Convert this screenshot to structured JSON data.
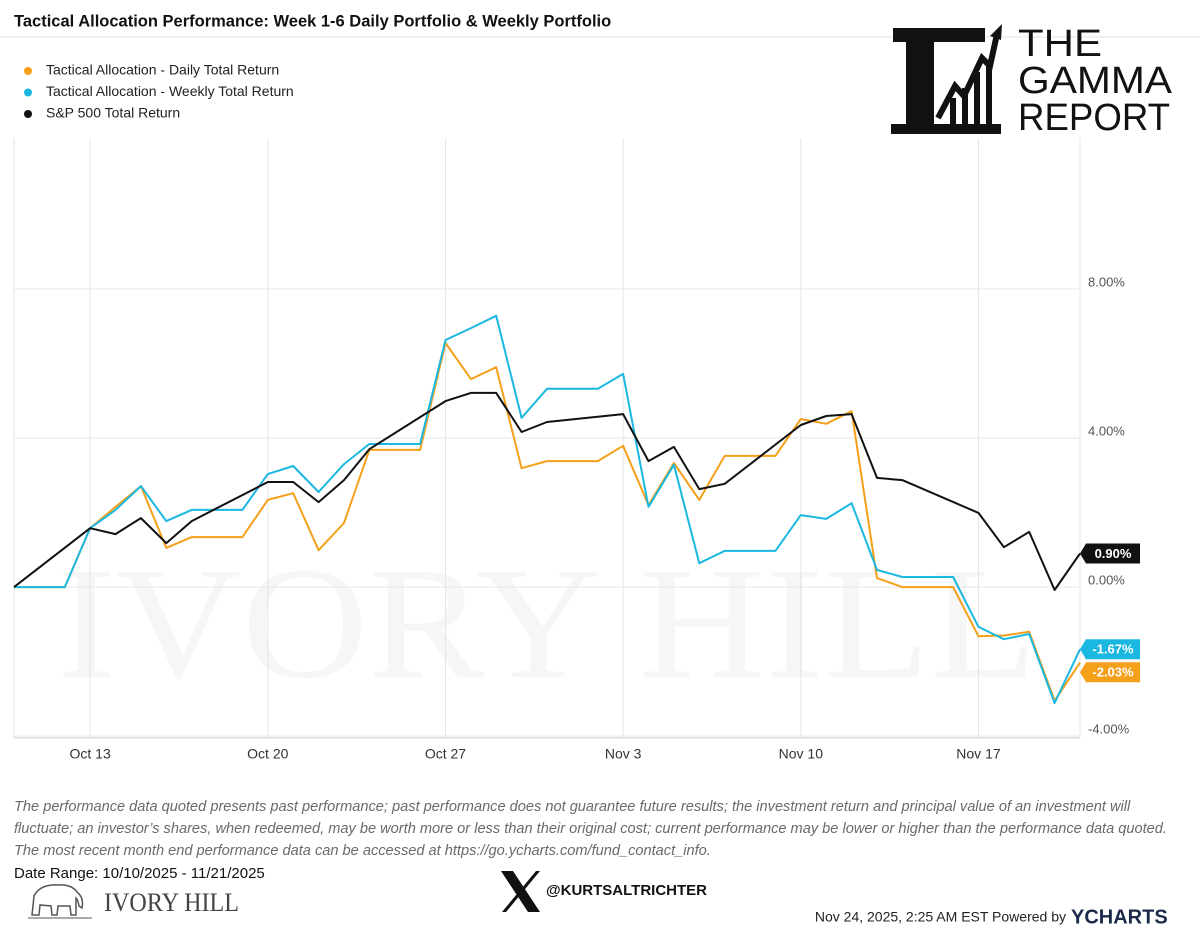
{
  "chart_data": {
    "type": "line",
    "title": "Tactical Allocation Performance: Week 1-6 Daily Portfolio & Weekly Portfolio",
    "x": [
      "2025-10-10",
      "2025-10-11",
      "2025-10-12",
      "2025-10-13",
      "2025-10-14",
      "2025-10-15",
      "2025-10-16",
      "2025-10-17",
      "2025-10-18",
      "2025-10-19",
      "2025-10-20",
      "2025-10-21",
      "2025-10-22",
      "2025-10-23",
      "2025-10-24",
      "2025-10-25",
      "2025-10-26",
      "2025-10-27",
      "2025-10-28",
      "2025-10-29",
      "2025-10-30",
      "2025-10-31",
      "2025-11-01",
      "2025-11-02",
      "2025-11-03",
      "2025-11-04",
      "2025-11-05",
      "2025-11-06",
      "2025-11-07",
      "2025-11-08",
      "2025-11-09",
      "2025-11-10",
      "2025-11-11",
      "2025-11-12",
      "2025-11-13",
      "2025-11-14",
      "2025-11-15",
      "2025-11-16",
      "2025-11-17",
      "2025-11-18",
      "2025-11-19",
      "2025-11-20",
      "2025-11-21"
    ],
    "series": [
      {
        "name": "Tactical Allocation - Daily Total Return",
        "color": "#f5a01a",
        "end_label": "-2.03%",
        "values": [
          0,
          0,
          0,
          1.58,
          2.15,
          2.71,
          1.05,
          1.34,
          1.34,
          1.34,
          2.34,
          2.52,
          0.99,
          1.72,
          3.68,
          3.68,
          3.68,
          6.55,
          5.58,
          5.9,
          3.19,
          3.38,
          3.38,
          3.38,
          3.79,
          2.2,
          3.33,
          2.34,
          3.52,
          3.52,
          3.52,
          4.51,
          4.38,
          4.72,
          0.24,
          0,
          0,
          0,
          -1.32,
          -1.3,
          -1.2,
          -3.05,
          -2.03
        ]
      },
      {
        "name": "Tactical Allocation - Weekly Total Return",
        "color": "#1ab8e0",
        "end_label": "-1.67%",
        "values": [
          0,
          0,
          0,
          1.58,
          2.07,
          2.71,
          1.77,
          2.07,
          2.07,
          2.07,
          3.03,
          3.25,
          2.55,
          3.3,
          3.84,
          3.84,
          3.84,
          6.63,
          6.95,
          7.28,
          4.54,
          5.32,
          5.32,
          5.32,
          5.72,
          2.15,
          3.28,
          0.64,
          0.97,
          0.97,
          0.97,
          1.93,
          1.83,
          2.25,
          0.46,
          0.27,
          0.27,
          0.27,
          -1.07,
          -1.4,
          -1.26,
          -3.11,
          -1.67
        ]
      },
      {
        "name": "S&P 500 Total Return",
        "color": "#111111",
        "end_label": "0.90%",
        "x": [
          "2025-10-10",
          "2025-10-13",
          "2025-10-14",
          "2025-10-15",
          "2025-10-16",
          "2025-10-17",
          "2025-10-20",
          "2025-10-21",
          "2025-10-22",
          "2025-10-23",
          "2025-10-24",
          "2025-10-27",
          "2025-10-28",
          "2025-10-29",
          "2025-10-30",
          "2025-10-31",
          "2025-11-03",
          "2025-11-04",
          "2025-11-05",
          "2025-11-06",
          "2025-11-07",
          "2025-11-10",
          "2025-11-11",
          "2025-11-12",
          "2025-11-13",
          "2025-11-14",
          "2025-11-17",
          "2025-11-18",
          "2025-11-19",
          "2025-11-20",
          "2025-11-21"
        ],
        "values": [
          0,
          1.58,
          1.42,
          1.85,
          1.18,
          1.77,
          2.82,
          2.82,
          2.28,
          2.87,
          3.7,
          4.99,
          5.21,
          5.21,
          4.16,
          4.43,
          4.64,
          3.38,
          3.76,
          2.63,
          2.77,
          4.35,
          4.59,
          4.64,
          2.93,
          2.87,
          1.99,
          1.07,
          1.48,
          -0.08,
          0.9
        ]
      }
    ],
    "xlim": [
      "2025-10-10",
      "2025-11-21"
    ],
    "xticks": [
      {
        "value": "2025-10-13",
        "label": "Oct 13"
      },
      {
        "value": "2025-10-20",
        "label": "Oct 20"
      },
      {
        "value": "2025-10-27",
        "label": "Oct 27"
      },
      {
        "value": "2025-11-03",
        "label": "Nov 3"
      },
      {
        "value": "2025-11-10",
        "label": "Nov 10"
      },
      {
        "value": "2025-11-17",
        "label": "Nov 17"
      }
    ],
    "ylim": [
      -4.05,
      12.05
    ],
    "yticks": [
      {
        "value": -4,
        "label": "-4.00%"
      },
      {
        "value": 0,
        "label": "0.00%"
      },
      {
        "value": 4,
        "label": "4.00%"
      },
      {
        "value": 8,
        "label": "8.00%"
      }
    ],
    "grid": true,
    "legend": "top-left"
  },
  "disclaimer": "The performance data quoted presents past performance; past performance does not guarantee future results; the investment return and principal value of an investment will fluctuate; an investor’s shares, when redeemed, may be worth more or less than their original cost; current performance may be lower or higher than the performance data quoted. The most recent month end performance data can be accessed at https://go.ycharts.com/fund_contact_info.",
  "date_range": "Date Range: 10/10/2025 - 11/21/2025",
  "handle": "@KURTSALTRICHTER",
  "timestamp": "Nov 24, 2025, 2:25 AM EST Powered by",
  "brand": "YCHARTS",
  "gamma_logo": [
    "THE",
    "GAMMA",
    "REPORT"
  ],
  "ivory_hill": "IVORY HILL"
}
